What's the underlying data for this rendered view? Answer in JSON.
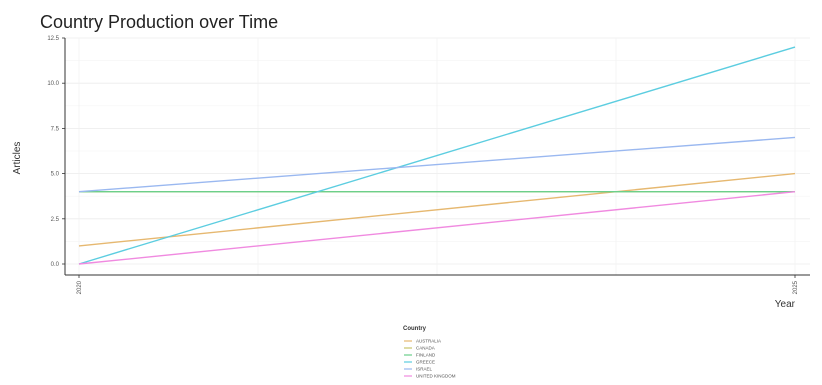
{
  "chart_data": {
    "type": "line",
    "title": "Country Production over Time",
    "xlabel": "Year",
    "ylabel": "Articles",
    "x": [
      "2020",
      "2025"
    ],
    "ylim": [
      0,
      12.5
    ],
    "y_ticks": [
      "0.0",
      "2.5",
      "5.0",
      "7.5",
      "10.0",
      "12.5"
    ],
    "x_ticks": [
      "2020",
      "2025"
    ],
    "grid": true,
    "legend": {
      "title": "Country",
      "placement": "bottom"
    },
    "series": [
      {
        "name": "AUSTRALIA",
        "color": "#e6b870",
        "values": [
          1,
          5
        ]
      },
      {
        "name": "CANADA",
        "color": "#c8c46a",
        "values": [
          4,
          4
        ]
      },
      {
        "name": "FINLAND",
        "color": "#6ccf8a",
        "values": [
          4,
          4
        ]
      },
      {
        "name": "GREECE",
        "color": "#5ccde0",
        "values": [
          0,
          12
        ]
      },
      {
        "name": "ISRAEL",
        "color": "#9ab8f0",
        "values": [
          4,
          7
        ]
      },
      {
        "name": "UNITED KINGDOM",
        "color": "#f08ae0",
        "values": [
          0,
          4
        ]
      }
    ]
  }
}
